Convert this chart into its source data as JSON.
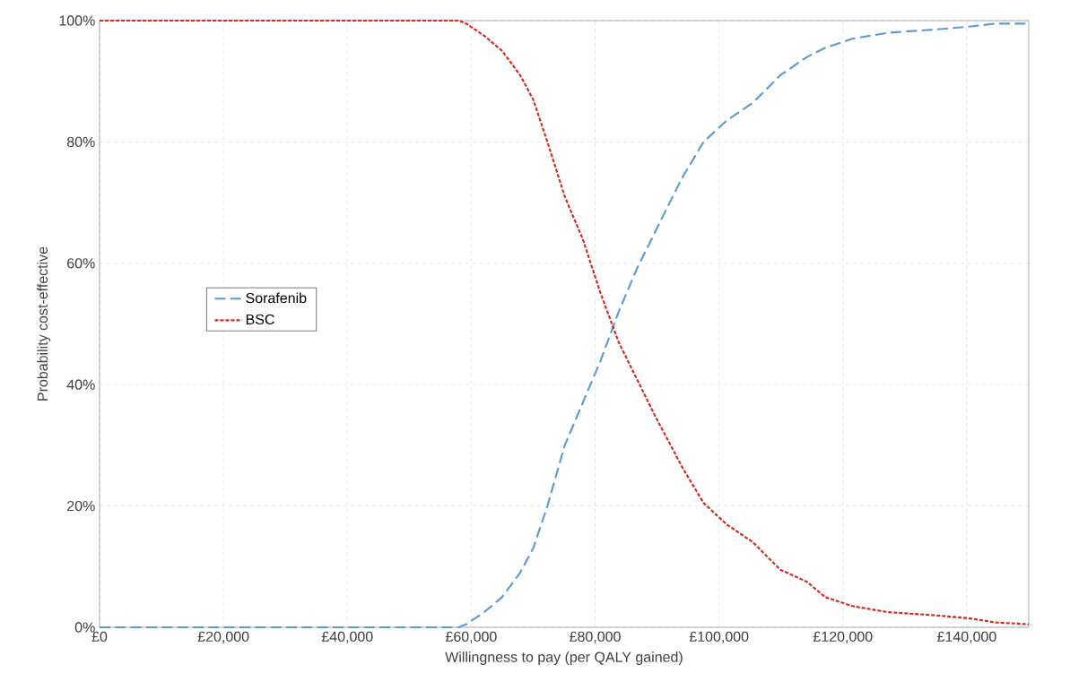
{
  "chart_data": {
    "type": "line",
    "xlabel": "Willingness  to pay (per QALY gained)",
    "ylabel": "Probability cost-effective",
    "x": [
      0,
      58000,
      59200,
      62100,
      65000,
      67900,
      70000,
      72300,
      75100,
      78000,
      80900,
      83800,
      86700,
      89600,
      94000,
      97500,
      101200,
      105500,
      109900,
      114200,
      117100,
      121500,
      127300,
      134500,
      140300,
      144600,
      150000
    ],
    "series": [
      {
        "name": "Sorafenib",
        "color": "#5b9bd5",
        "line_style": "dashed",
        "values": [
          0,
          0,
          0.5,
          2.5,
          5,
          9,
          13,
          20,
          30,
          37,
          44,
          52,
          59,
          65,
          74,
          80,
          83.5,
          86.5,
          91,
          94,
          95.5,
          97,
          98,
          98.5,
          99,
          99.5,
          99.5
        ]
      },
      {
        "name": "BSC",
        "color": "#d9261c",
        "line_style": "dotted",
        "values": [
          100,
          100,
          99.5,
          97.5,
          95,
          91,
          87,
          80,
          71,
          64,
          55,
          47,
          41,
          35,
          26.5,
          20.5,
          17,
          14,
          9.5,
          7.5,
          5,
          3.5,
          2.5,
          2,
          1.5,
          0.8,
          0.5
        ]
      }
    ],
    "xlim": [
      0,
      150000
    ],
    "ylim": [
      0,
      100
    ],
    "xticks": [
      {
        "value": 0,
        "label": "£0"
      },
      {
        "value": 20000,
        "label": "£20,000"
      },
      {
        "value": 40000,
        "label": "£40,000"
      },
      {
        "value": 60000,
        "label": "£60,000"
      },
      {
        "value": 80000,
        "label": "£80,000"
      },
      {
        "value": 100000,
        "label": "£100,000"
      },
      {
        "value": 120000,
        "label": "£120,000"
      },
      {
        "value": 140000,
        "label": "£140,000"
      }
    ],
    "yticks": [
      {
        "value": 0,
        "label": "0%"
      },
      {
        "value": 20,
        "label": "20%"
      },
      {
        "value": 40,
        "label": "40%"
      },
      {
        "value": 60,
        "label": "60%"
      },
      {
        "value": 80,
        "label": "80%"
      },
      {
        "value": 100,
        "label": "100%"
      }
    ],
    "grid": true,
    "legend": "left"
  }
}
